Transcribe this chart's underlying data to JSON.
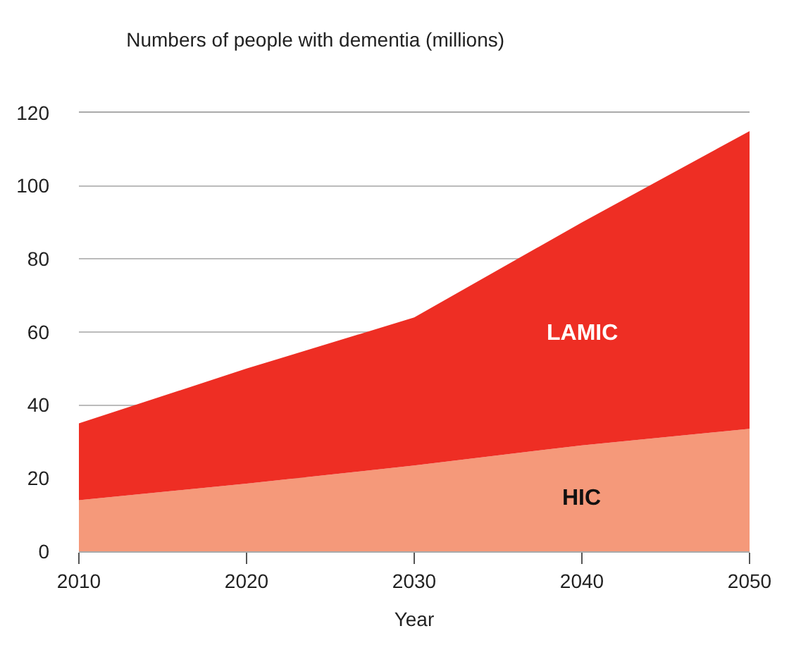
{
  "chart_data": {
    "type": "area",
    "stacked": true,
    "title": "Numbers of people with dementia (millions)",
    "xlabel": "Year",
    "x": [
      2010,
      2020,
      2030,
      2040,
      2050
    ],
    "series": [
      {
        "name": "HIC",
        "color": "#f5997a",
        "values": [
          14,
          18.5,
          23.5,
          29,
          33.5
        ]
      },
      {
        "name": "LAMIC",
        "color": "#ee2e24",
        "values": [
          21,
          31.5,
          40.5,
          61,
          81.5
        ]
      }
    ],
    "xlim": [
      2010,
      2050
    ],
    "xticks": [
      2010,
      2020,
      2030,
      2040,
      2050
    ],
    "ylim": [
      0,
      120
    ],
    "yticks": [
      0,
      20,
      40,
      60,
      80,
      100,
      120
    ],
    "grid": "y"
  }
}
